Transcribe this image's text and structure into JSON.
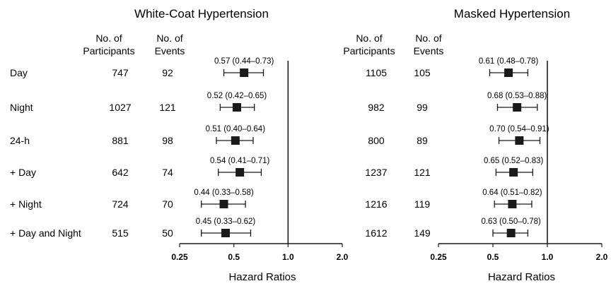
{
  "row_labels": [
    "Day",
    "Night",
    "24-h",
    "+ Day",
    "+ Night",
    "+ Day and Night"
  ],
  "column_headers": {
    "participants": [
      "No. of",
      "Participants"
    ],
    "events": [
      "No. of",
      "Events"
    ]
  },
  "chart_data": [
    {
      "type": "forest",
      "title": "White-Coat Hypertension",
      "xlabel": "Hazard Ratios",
      "x_scale": "log",
      "xlim": [
        0.25,
        2.0
      ],
      "xticks": [
        "0.25",
        "0.5",
        "1.0",
        "2.0"
      ],
      "reference_line": 1.0,
      "rows": [
        {
          "label": "Day",
          "participants": "747",
          "events": "92",
          "hr": 0.57,
          "lo": 0.44,
          "hi": 0.73,
          "ci_text": "0.57 (0.44–0.73)"
        },
        {
          "label": "Night",
          "participants": "1027",
          "events": "121",
          "hr": 0.52,
          "lo": 0.42,
          "hi": 0.65,
          "ci_text": "0.52 (0.42–0.65)"
        },
        {
          "label": "24-h",
          "participants": "881",
          "events": "98",
          "hr": 0.51,
          "lo": 0.4,
          "hi": 0.64,
          "ci_text": "0.51 (0.40–0.64)"
        },
        {
          "label": "+ Day",
          "participants": "642",
          "events": "74",
          "hr": 0.54,
          "lo": 0.41,
          "hi": 0.71,
          "ci_text": "0.54 (0.41–0.71)"
        },
        {
          "label": "+ Night",
          "participants": "724",
          "events": "70",
          "hr": 0.44,
          "lo": 0.33,
          "hi": 0.58,
          "ci_text": "0.44 (0.33–0.58)"
        },
        {
          "label": "+ Day and Night",
          "participants": "515",
          "events": "50",
          "hr": 0.45,
          "lo": 0.33,
          "hi": 0.62,
          "ci_text": "0.45 (0.33–0.62)"
        }
      ]
    },
    {
      "type": "forest",
      "title": "Masked Hypertension",
      "xlabel": "Hazard Ratios",
      "x_scale": "log",
      "xlim": [
        0.25,
        2.0
      ],
      "xticks": [
        "0.25",
        "0.5",
        "1.0",
        "2.0"
      ],
      "reference_line": 1.0,
      "rows": [
        {
          "label": "Day",
          "participants": "1105",
          "events": "105",
          "hr": 0.61,
          "lo": 0.48,
          "hi": 0.78,
          "ci_text": "0.61 (0.48–0.78)"
        },
        {
          "label": "Night",
          "participants": "982",
          "events": "99",
          "hr": 0.68,
          "lo": 0.53,
          "hi": 0.88,
          "ci_text": "0.68 (0.53–0.88)"
        },
        {
          "label": "24-h",
          "participants": "800",
          "events": "89",
          "hr": 0.7,
          "lo": 0.54,
          "hi": 0.91,
          "ci_text": "0.70 (0.54–0.91)"
        },
        {
          "label": "+ Day",
          "participants": "1237",
          "events": "121",
          "hr": 0.65,
          "lo": 0.52,
          "hi": 0.83,
          "ci_text": "0.65 (0.52–0.83)"
        },
        {
          "label": "+ Night",
          "participants": "1216",
          "events": "119",
          "hr": 0.64,
          "lo": 0.51,
          "hi": 0.82,
          "ci_text": "0.64 (0.51–0.82)"
        },
        {
          "label": "+ Day and Night",
          "participants": "1612",
          "events": "149",
          "hr": 0.63,
          "lo": 0.5,
          "hi": 0.78,
          "ci_text": "0.63 (0.50–0.78)"
        }
      ]
    }
  ]
}
